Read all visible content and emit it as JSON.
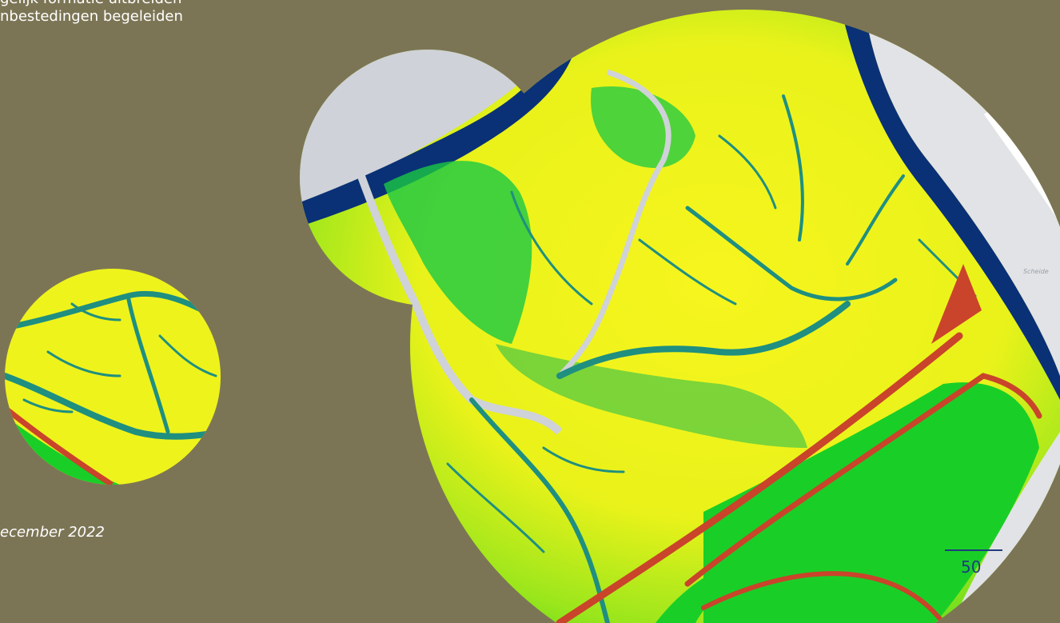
{
  "text_block": {
    "lines": [
      "gelijk formatie uitbreiden",
      "nbestedingen begeleiden"
    ]
  },
  "date_caption": "ecember 2022",
  "page_number": "50",
  "map": {
    "place_label": "Scheide",
    "colors": {
      "background": "#7c7555",
      "high_ground": "#f7f51e",
      "mid_ground": "#00d21e",
      "shallow": "#1f8f80",
      "deep_water": "#0a3175",
      "channel": "#cfd2d8",
      "dike": "#c9442b",
      "land": "#e2e3e6"
    }
  }
}
